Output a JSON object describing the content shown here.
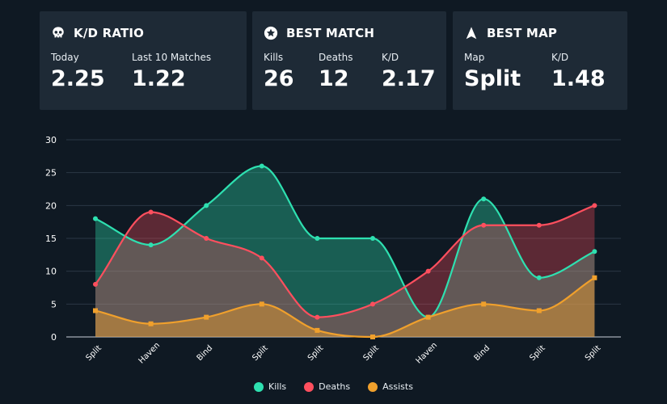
{
  "cards": {
    "kd": {
      "title": "K/D RATIO",
      "icon": "skull-icon",
      "stats": [
        {
          "label": "Today",
          "value": "2.25"
        },
        {
          "label": "Last 10 Matches",
          "value": "1.22"
        }
      ]
    },
    "best_match": {
      "title": "BEST MATCH",
      "icon": "star-badge-icon",
      "stats": [
        {
          "label": "Kills",
          "value": "26"
        },
        {
          "label": "Deaths",
          "value": "12"
        },
        {
          "label": "K/D",
          "value": "2.17"
        }
      ]
    },
    "best_map": {
      "title": "BEST MAP",
      "icon": "arrow-up-icon",
      "stats": [
        {
          "label": "Map",
          "value": "Split"
        },
        {
          "label": "K/D",
          "value": "1.48"
        }
      ]
    }
  },
  "colors": {
    "kills": "#2ee0b0",
    "deaths": "#ff4f5e",
    "assists": "#f0a02c",
    "background": "#0f1923",
    "card": "#1e2a36"
  },
  "chart_data": {
    "type": "area",
    "categories": [
      "Split",
      "Haven",
      "Bind",
      "Split",
      "Split",
      "Split",
      "Haven",
      "Bind",
      "Split",
      "Split"
    ],
    "ylim": [
      0,
      30
    ],
    "yticks": [
      0,
      5,
      10,
      15,
      20,
      25,
      30
    ],
    "series": [
      {
        "name": "Kills",
        "values": [
          18,
          14,
          20,
          26,
          15,
          15,
          3,
          21,
          9,
          13
        ]
      },
      {
        "name": "Deaths",
        "values": [
          8,
          19,
          15,
          12,
          3,
          5,
          10,
          17,
          17,
          20
        ]
      },
      {
        "name": "Assists",
        "values": [
          4,
          2,
          3,
          5,
          1,
          0,
          3,
          5,
          4,
          9
        ]
      }
    ],
    "legend": [
      "Kills",
      "Deaths",
      "Assists"
    ],
    "legend_position": "bottom",
    "grid": true
  }
}
